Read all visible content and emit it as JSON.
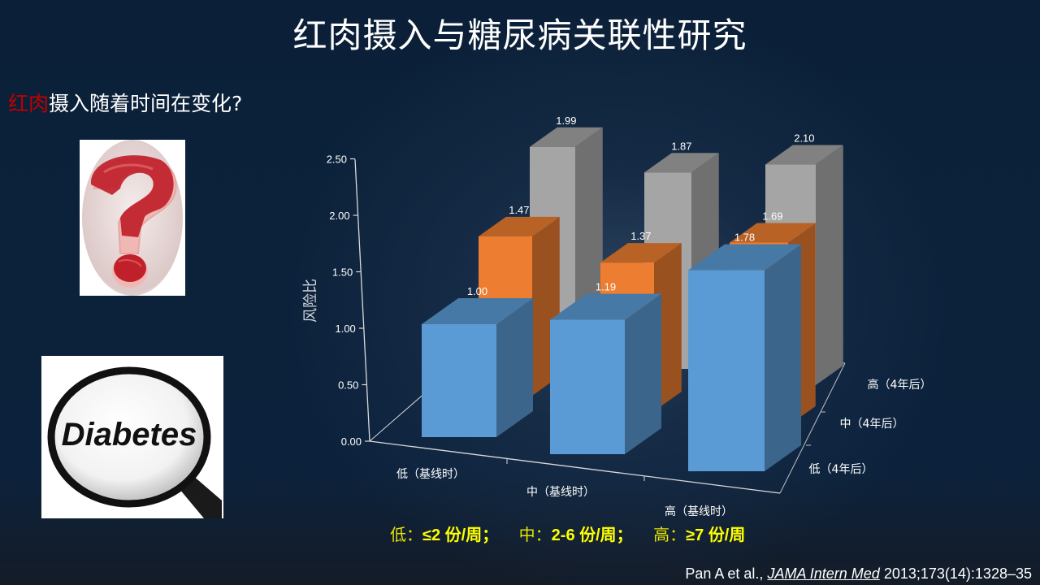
{
  "slide": {
    "title": "红肉摄入与糖尿病关联性研究",
    "subtitle_highlight": "红肉",
    "subtitle_rest": "摄入随着时间在变化?",
    "images": [
      {
        "name": "meat-question-mark-image",
        "alt": "Red meat shaped as a question mark"
      },
      {
        "name": "diabetes-magnifier-image",
        "alt": "Diabetes",
        "text": "Diabetes"
      }
    ],
    "legend": {
      "low_label": "低：",
      "low_value": "≤2 份/周；",
      "mid_label": "中：",
      "mid_value": "2-6 份/周；",
      "high_label": "高：",
      "high_value": "≥7 份/周"
    },
    "citation": {
      "authors": "Pan A et al., ",
      "journal": "JAMA Intern Med",
      "details": " 2013;173(14):1328–35"
    },
    "colors": {
      "background": "#0b2038",
      "blue_series": "#5b9bd5",
      "orange_series": "#ed7d31",
      "gray_series": "#a5a5a5",
      "highlight_red": "#c00000",
      "legend_yellow": "#ffff00"
    }
  },
  "chart_data": {
    "type": "bar",
    "subtype": "3d-column",
    "title": "",
    "ylabel": "风险比",
    "ylim": [
      0,
      2.5
    ],
    "yticks": [
      "0.00",
      "0.50",
      "1.00",
      "1.50",
      "2.00",
      "2.50"
    ],
    "categories": [
      "低（基线时）",
      "中（基线时）",
      "高（基线时）"
    ],
    "depth_categories": [
      "低（4年后）",
      "中（4年后）",
      "高（4年后）"
    ],
    "series": [
      {
        "name": "低（4年后）",
        "color": "#5b9bd5",
        "values": [
          1.0,
          1.19,
          1.78
        ],
        "labels": [
          "1.00",
          "1.19",
          "1.78"
        ]
      },
      {
        "name": "中（4年后）",
        "color": "#ed7d31",
        "values": [
          1.47,
          1.37,
          1.69
        ],
        "labels": [
          "1.47",
          "1.37",
          "1.69"
        ]
      },
      {
        "name": "高（4年后）",
        "color": "#a5a5a5",
        "values": [
          1.99,
          1.87,
          2.1
        ],
        "labels": [
          "1.99",
          "1.87",
          "2.10"
        ]
      }
    ],
    "grid": false,
    "legend_position": "depth-axis"
  }
}
